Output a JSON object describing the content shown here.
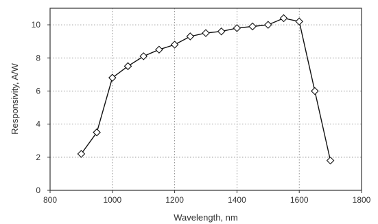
{
  "chart_data": {
    "type": "line",
    "title": "",
    "xlabel": "Wavelength, nm",
    "ylabel": "Responsivity, A/W",
    "xlim": [
      800,
      1800
    ],
    "ylim": [
      0,
      11
    ],
    "xticks": [
      800,
      1000,
      1200,
      1400,
      1600,
      1800
    ],
    "yticks": [
      0,
      2,
      4,
      6,
      8,
      10
    ],
    "grid": true,
    "grid_style": "dotted",
    "marker": "diamond-open",
    "colors": {
      "line": "#111111",
      "marker_fill": "#ffffff",
      "axis": "#333333",
      "grid": "#777777"
    },
    "series": [
      {
        "x": [
          900,
          950,
          1000,
          1050,
          1100,
          1150,
          1200,
          1250,
          1300,
          1350,
          1400,
          1450,
          1500,
          1550,
          1600,
          1650,
          1700
        ],
        "y": [
          2.2,
          3.5,
          6.8,
          7.5,
          8.1,
          8.5,
          8.8,
          9.3,
          9.5,
          9.6,
          9.8,
          9.9,
          10.0,
          10.4,
          10.2,
          6.0,
          1.8
        ]
      }
    ]
  }
}
